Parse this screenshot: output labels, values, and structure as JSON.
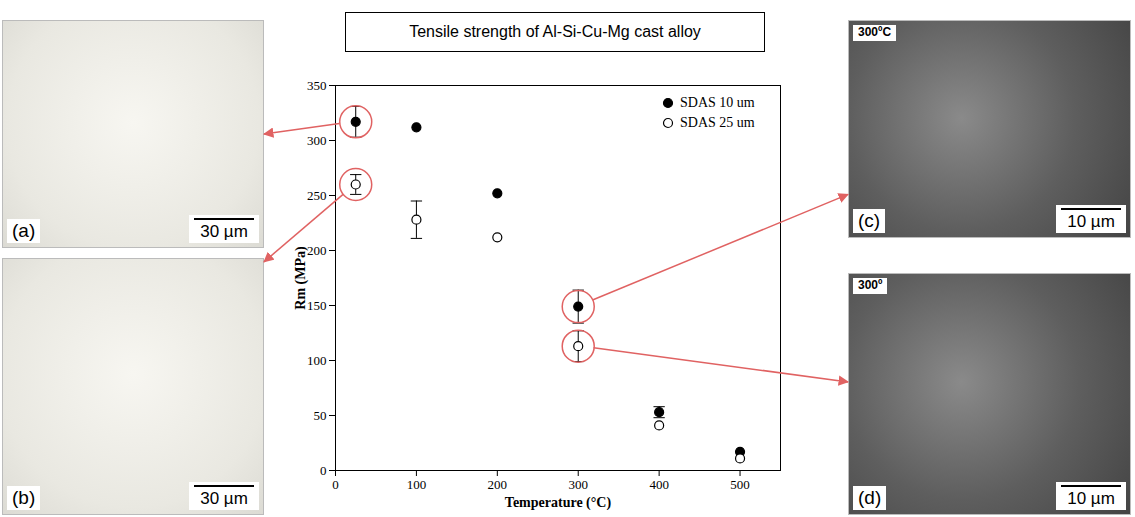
{
  "chart_data": {
    "type": "scatter",
    "title": "Tensile strength of Al-Si-Cu-Mg cast alloy",
    "x_label": "Temperature (°C)",
    "y_label": "Rm (MPa)",
    "x": [
      25,
      100,
      200,
      300,
      400,
      500
    ],
    "series": [
      {
        "name": "SDAS 10 um",
        "color": "#000000",
        "marker": "circle",
        "values": [
          317,
          312,
          252,
          149,
          53,
          17
        ],
        "errors": [
          14,
          null,
          null,
          15,
          5,
          null
        ]
      },
      {
        "name": "SDAS 25 um",
        "color": "#000000",
        "marker": "open_circle",
        "values": [
          260,
          228,
          212,
          113,
          41,
          11
        ],
        "errors": [
          9,
          17,
          null,
          14,
          null,
          null
        ]
      }
    ],
    "xlim": [
      0,
      550
    ],
    "ylim": [
      0,
      350
    ],
    "xticks": [
      0,
      100,
      200,
      300,
      400,
      500
    ],
    "yticks": [
      0,
      50,
      100,
      150,
      200,
      250,
      300,
      350
    ],
    "legend": "upper right",
    "grid": false
  },
  "panels": [
    {
      "label": "(a)",
      "scale_bar": "30 µm",
      "points_to": {
        "series": "SDAS 10 um",
        "x": 25
      }
    },
    {
      "label": "(b)",
      "scale_bar": "30 µm",
      "points_to": {
        "series": "SDAS 25 um",
        "x": 25
      }
    },
    {
      "label": "(c)",
      "caption": "300ºC",
      "scale_bar": "10 µm",
      "points_to": {
        "series": "SDAS 10 um",
        "x": 300
      }
    },
    {
      "label": "(d)",
      "caption": "300º",
      "scale_bar": "10 µm",
      "points_to": {
        "series": "SDAS 25 um",
        "x": 300
      }
    }
  ]
}
